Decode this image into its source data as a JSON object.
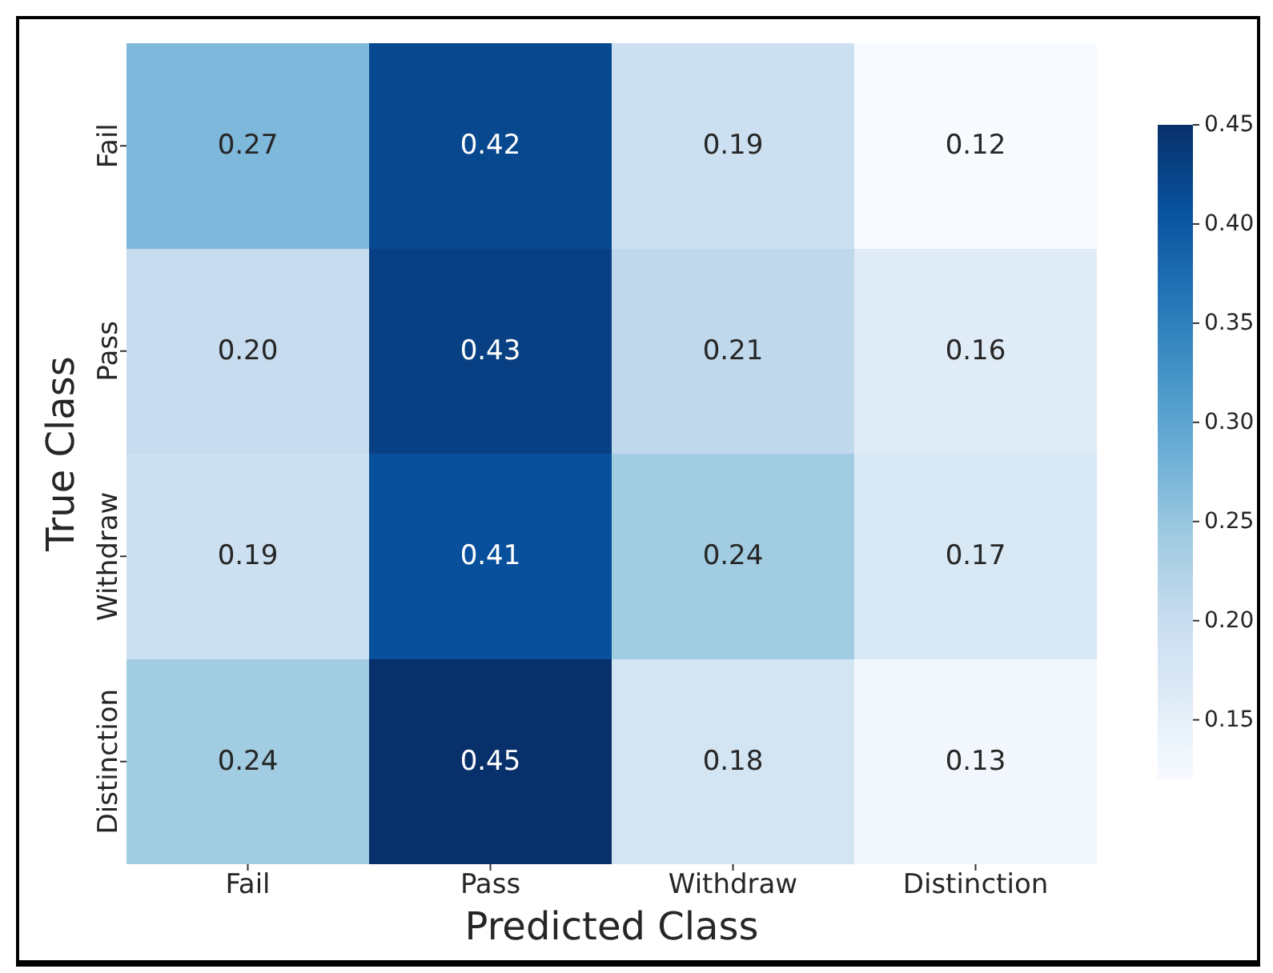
{
  "chart_data": {
    "type": "heatmap",
    "xlabel": "Predicted Class",
    "ylabel": "True Class",
    "categories": [
      "Fail",
      "Pass",
      "Withdraw",
      "Distinction"
    ],
    "y_categories": [
      "Fail",
      "Pass",
      "Withdraw",
      "Distinction"
    ],
    "cells": [
      [
        0.27,
        0.42,
        0.19,
        0.12
      ],
      [
        0.2,
        0.43,
        0.21,
        0.16
      ],
      [
        0.19,
        0.41,
        0.24,
        0.17
      ],
      [
        0.24,
        0.45,
        0.18,
        0.13
      ]
    ],
    "cell_labels": [
      [
        "0.27",
        "0.42",
        "0.19",
        "0.12"
      ],
      [
        "0.20",
        "0.43",
        "0.21",
        "0.16"
      ],
      [
        "0.19",
        "0.41",
        "0.24",
        "0.17"
      ],
      [
        "0.24",
        "0.45",
        "0.18",
        "0.13"
      ]
    ],
    "clim": [
      0.12,
      0.45
    ],
    "cticks": [
      0.15,
      {
        "value": 0.2,
        "label": "0.20"
      },
      0.25,
      {
        "value": 0.3,
        "label": "0.30"
      },
      0.35,
      {
        "value": 0.4,
        "label": "0.40"
      },
      0.45
    ]
  }
}
